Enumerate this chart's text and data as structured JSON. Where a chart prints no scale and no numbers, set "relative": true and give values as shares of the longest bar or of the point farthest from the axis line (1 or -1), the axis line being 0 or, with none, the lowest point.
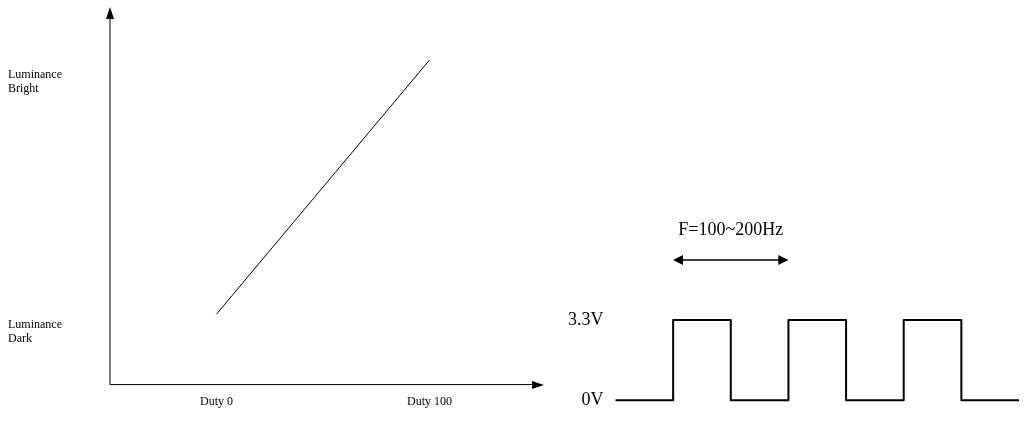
{
  "chart_data": [
    {
      "type": "line",
      "categories": [
        "Duty 0",
        "Duty 100"
      ],
      "values": [
        0.217,
        1
      ],
      "relative": true,
      "color": "#000000",
      "annotations": [
        "Luminance Bright",
        "Luminance Dark"
      ],
      "grid": false,
      "marker": "none"
    },
    {
      "type": "step",
      "categories": [
        null,
        null,
        null,
        null,
        null,
        null,
        null,
        null
      ],
      "values": [
        0,
        3.3,
        0,
        3.3,
        0,
        3.3,
        0,
        0
      ],
      "color": "#000000",
      "ylim": [
        0,
        3.3
      ],
      "yticks": [
        {
          "value": 0,
          "label": "0V"
        },
        {
          "value": 3.3,
          "label": "3.3V"
        }
      ],
      "tick_labels": "y",
      "annotations": [
        "F=100~200Hz"
      ],
      "grid": false,
      "marker": "none"
    }
  ]
}
